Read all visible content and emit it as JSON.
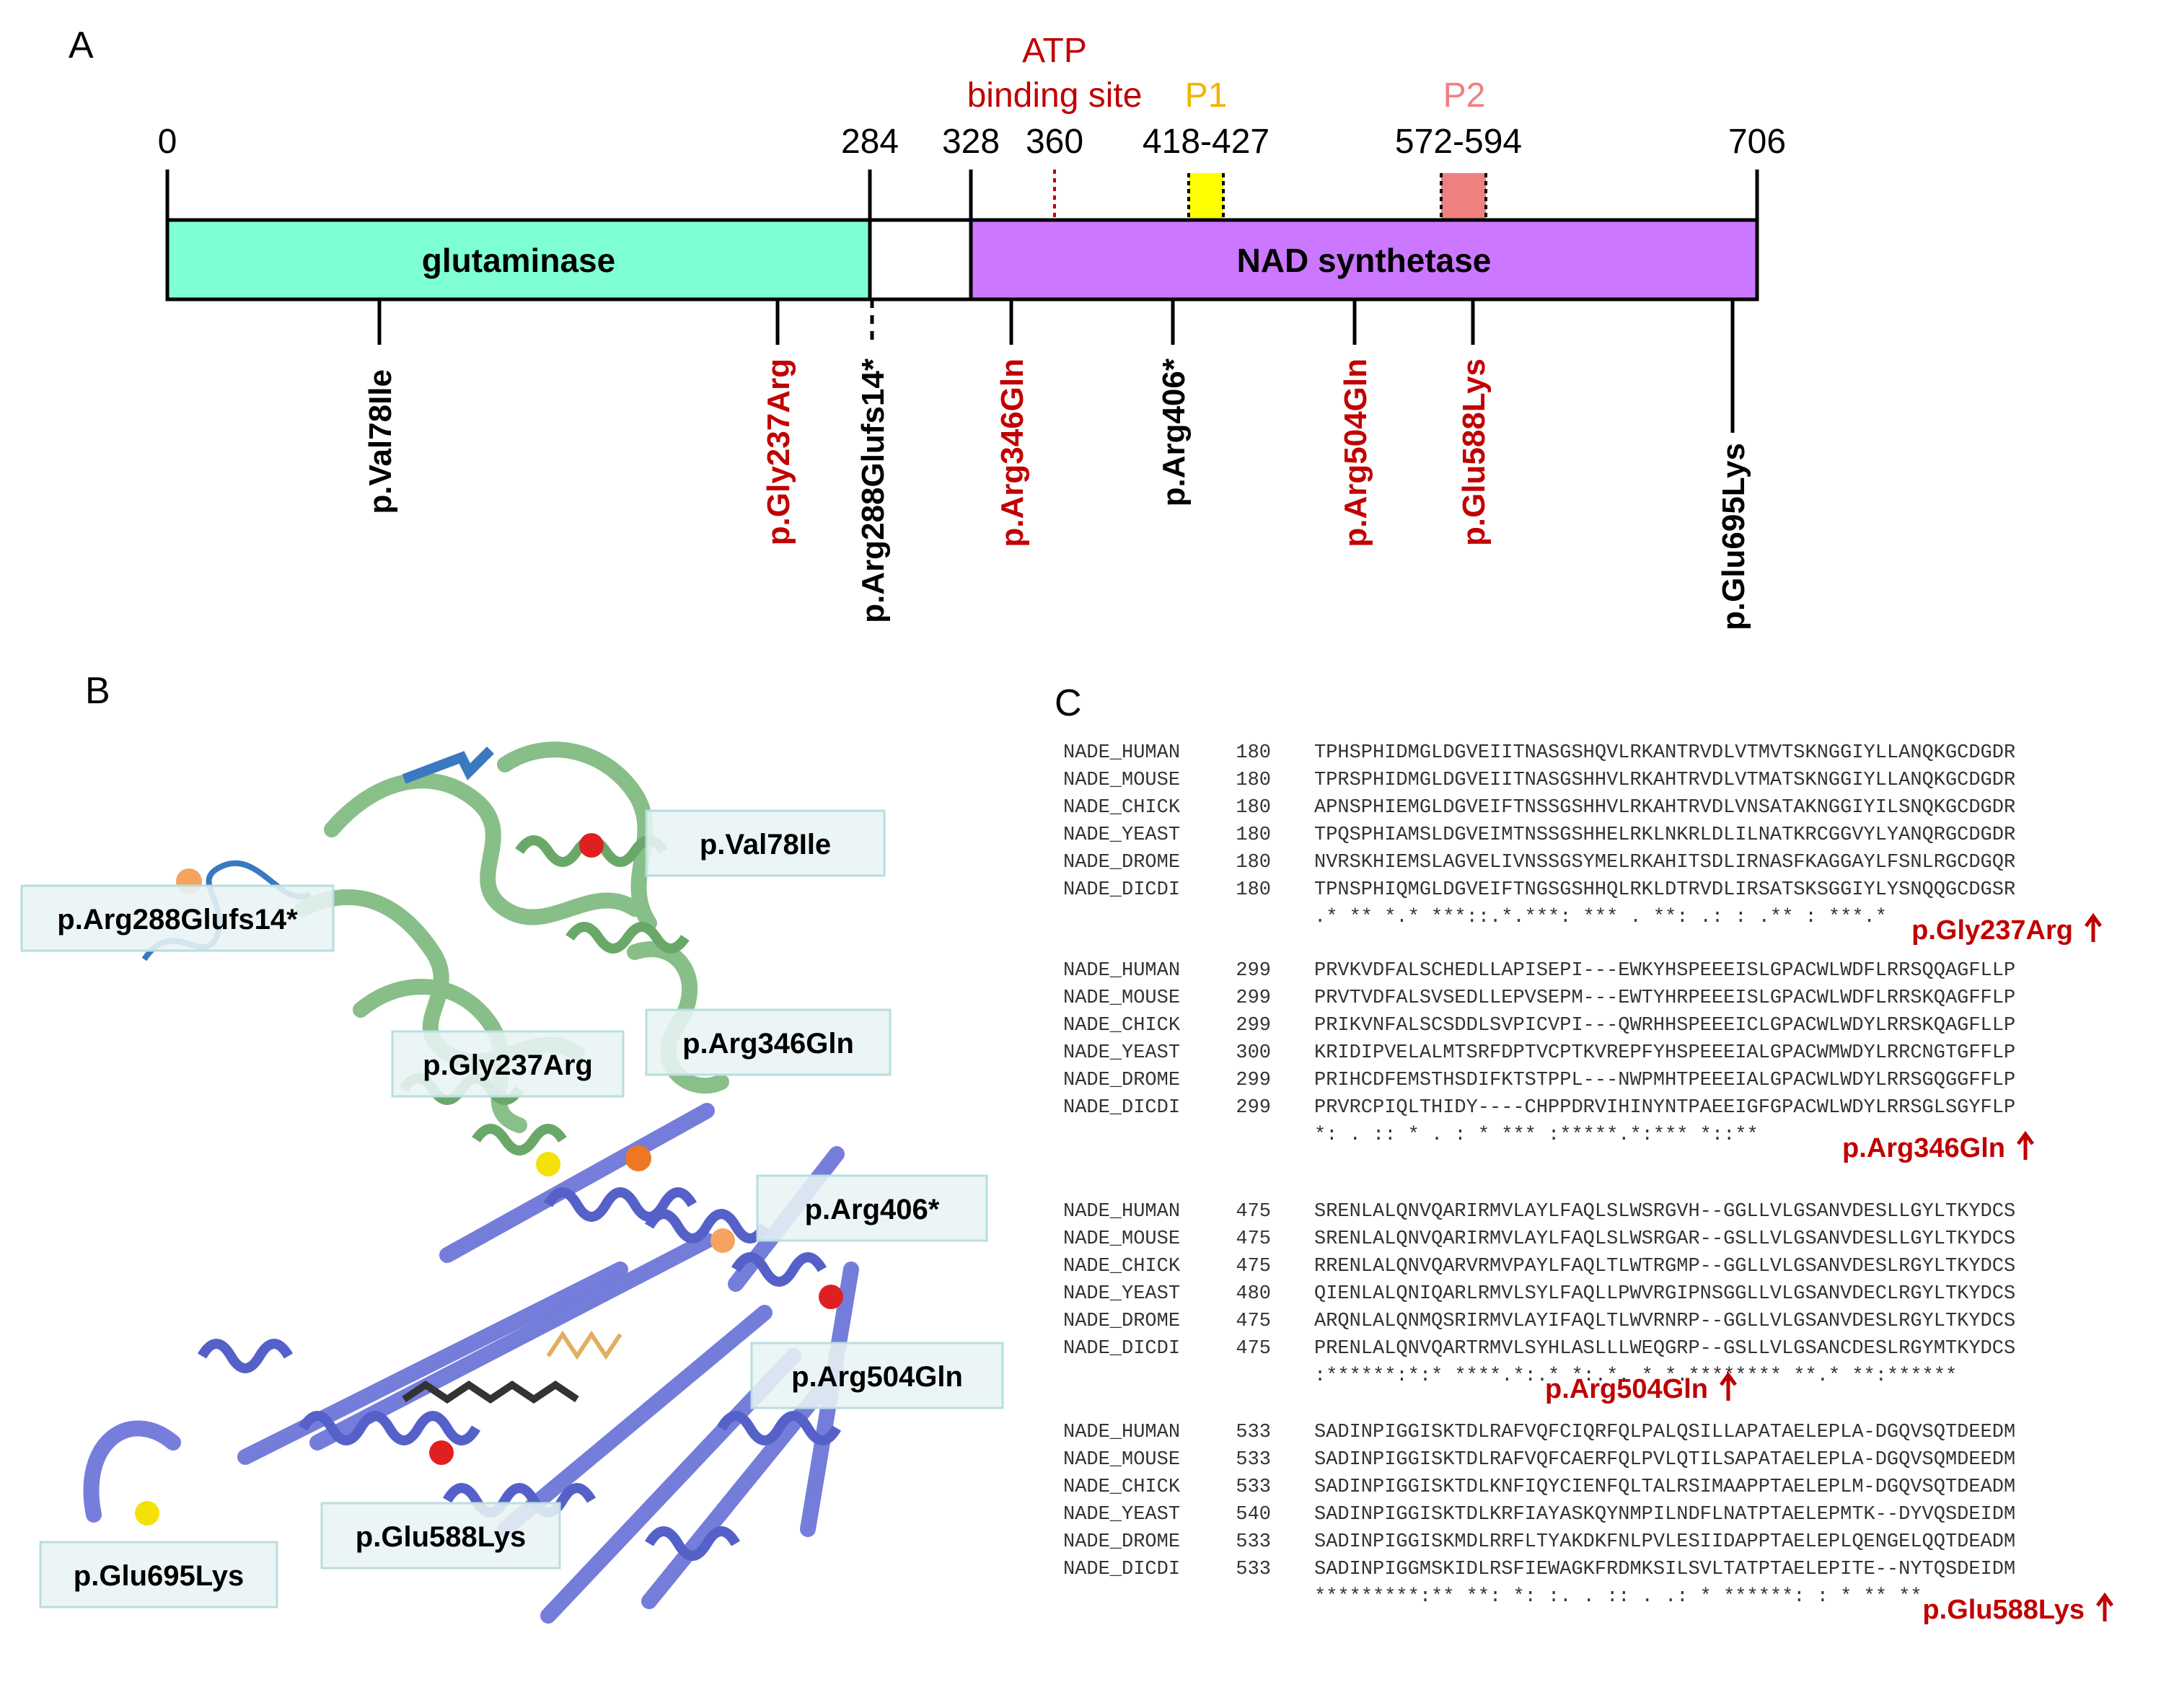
{
  "panels": {
    "a": "A",
    "b": "B",
    "c": "C"
  },
  "domain_map": {
    "scale": {
      "start": "0",
      "glut_end": "284",
      "nad_start": "328",
      "end": "706"
    },
    "atp": {
      "line1": "ATP",
      "line2": "binding site",
      "pos": "360"
    },
    "p1": {
      "label": "P1",
      "range": "418-427"
    },
    "p2": {
      "label": "P2",
      "range": "572-594"
    },
    "domains": {
      "glutaminase": "glutaminase",
      "nad": "NAD synthetase"
    },
    "colors": {
      "glutaminase": "#7fffd4",
      "nad": "#cc77ff",
      "p1": "#ffff00",
      "p2": "#f08080",
      "red": "#c00000"
    },
    "variants": [
      {
        "name": "p.Val78Ile",
        "color": "black"
      },
      {
        "name": "p.Gly237Arg",
        "color": "red"
      },
      {
        "name": "p.Arg288Glufs14*",
        "color": "black"
      },
      {
        "name": "p.Arg346Gln",
        "color": "red"
      },
      {
        "name": "p.Arg406*",
        "color": "black"
      },
      {
        "name": "p.Arg504Gln",
        "color": "red"
      },
      {
        "name": "p.Glu588Lys",
        "color": "red"
      },
      {
        "name": "p.Glu695Lys",
        "color": "black"
      }
    ]
  },
  "structure_labels": {
    "val78": "p.Val78Ile",
    "arg288": "p.Arg288Glufs14*",
    "gly237": "p.Gly237Arg",
    "arg346": "p.Arg346Gln",
    "arg406": "p.Arg406*",
    "arg504": "p.Arg504Gln",
    "glu588": "p.Glu588Lys",
    "glu695": "p.Glu695Lys"
  },
  "alignment": [
    {
      "rows": [
        {
          "name": "NADE_HUMAN",
          "pos": "180",
          "seq": "TPHSPHIDMGLDGVEIITNASGSHQVLRKANTRVDLVTMVTSKNGGIYLLANQKGCDGDR"
        },
        {
          "name": "NADE_MOUSE",
          "pos": "180",
          "seq": "TPRSPHIDMGLDGVEIITNASGSHHVLRKAHTRVDLVTMATSKNGGIYLLANQKGCDGDR"
        },
        {
          "name": "NADE_CHICK",
          "pos": "180",
          "seq": "APNSPHIEMGLDGVEIFTNSSGSHHVLRKAHTRVDLVNSATAKNGGIYILSNQKGCDGDR"
        },
        {
          "name": "NADE_YEAST",
          "pos": "180",
          "seq": "TPQSPHIAMSLDGVEIMTNSSGSHHELRKLNKRLDLILNATKRCGGVYLYANQRGCDGDR"
        },
        {
          "name": "NADE_DROME",
          "pos": "180",
          "seq": "NVRSKHIEMSLAGVELIVNSSGSYMELRKAHITSDLIRNASFKAGGAYLFSNLRGCDGQR"
        },
        {
          "name": "NADE_DICDI",
          "pos": "180",
          "seq": "TPNSPHIQMGLDGVEIFTNGSGSHHQLRKLDTRVDLIRSATSKSGGIYLYSNQQGCDGSR"
        }
      ],
      "consensus": " .* ** *.* ***::.*.***:   ***  .    **:  .: : .**  :  ***.*",
      "mutation": "p.Gly237Arg"
    },
    {
      "rows": [
        {
          "name": "NADE_HUMAN",
          "pos": "299",
          "seq": "PRVKVDFALSCHEDLLAPISEPI---EWKYHSPEEEISLGPACWLWDFLRRSQQAGFLLP"
        },
        {
          "name": "NADE_MOUSE",
          "pos": "299",
          "seq": "PRVTVDFALSVSEDLLEPVSEPM---EWTYHRPEEEISLGPACWLWDFLRRSKQAGFFLP"
        },
        {
          "name": "NADE_CHICK",
          "pos": "299",
          "seq": "PRIKVNFALSCSDDLSVPICVPI---QWRHHSPEEEICLGPACWLWDYLRRSKQAGFLLP"
        },
        {
          "name": "NADE_YEAST",
          "pos": "300",
          "seq": "KRIDIPVELALMTSRFDPTVCPTKVREPFYHSPEEEIALGPACWMWDYLRRCNGTGFFLP"
        },
        {
          "name": "NADE_DROME",
          "pos": "299",
          "seq": "PRIHCDFEMSTHSDIFKTSTPPL---NWPMHTPEEEIALGPACWLWDYLRRSGQGGFFLP"
        },
        {
          "name": "NADE_DICDI",
          "pos": "299",
          "seq": "PRVRCPIQLTHIDY----CHPPDRVIHINYNTPAEEIGFGPACWLWDYLRRSGLSGYFLP"
        }
      ],
      "consensus": " *:   . ::          *    .     : * *** :*****.*:***    *::**",
      "mutation": "p.Arg346Gln"
    },
    {
      "rows": [
        {
          "name": "NADE_HUMAN",
          "pos": "475",
          "seq": "SRENLALQNVQARIRMVLAYLFAQLSLWSRGVH--GGLLVLGSANVDESLLGYLTKYDCS"
        },
        {
          "name": "NADE_MOUSE",
          "pos": "475",
          "seq": "SRENLALQNVQARIRMVLAYLFAQLSLWSRGAR--GSLLVLGSANVDESLLGYLTKYDCS"
        },
        {
          "name": "NADE_CHICK",
          "pos": "475",
          "seq": "RRENLALQNVQARVRMVPAYLFAQLTLWTRGMP--GGLLVLGSANVDESLRGYLTKYDCS"
        },
        {
          "name": "NADE_YEAST",
          "pos": "480",
          "seq": "QIENLALQNIQARLRMVLSYLFAQLLPWVRGIPNSGGLLVLGSANVDECLRGYLTKYDCS"
        },
        {
          "name": "NADE_DROME",
          "pos": "475",
          "seq": "ARQNLALQNMQSRIRMVLAYIFAQLTLWVRNRP--GGLLVLGSANVDESLRGYLTKYDCS"
        },
        {
          "name": "NADE_DICDI",
          "pos": "475",
          "seq": "PRENLALQNVQARTRMVLSYHLASLLLWEQGRP--GSLLVLGSANCDESLRGYMTKYDCS"
        }
      ],
      "consensus": "  :******:*:* ****.*:.* *:.*. *    *.******** **.* **:******",
      "mutation": "p.Arg504Gln"
    },
    {
      "rows": [
        {
          "name": "NADE_HUMAN",
          "pos": "533",
          "seq": "SADINPIGGISKTDLRAFVQFCIQRFQLPALQSILLAPATAELEPLA-DGQVSQTDEEDM"
        },
        {
          "name": "NADE_MOUSE",
          "pos": "533",
          "seq": "SADINPIGGISKTDLRAFVQFCAERFQLPVLQTILSAPATAELEPLA-DGQVSQMDEEDM"
        },
        {
          "name": "NADE_CHICK",
          "pos": "533",
          "seq": "SADINPIGGISKTDLKNFIQYCIENFQLTALRSIMAAPPTAELEPLM-DGQVSQTDEADM"
        },
        {
          "name": "NADE_YEAST",
          "pos": "540",
          "seq": "SADINPIGGISKTDLKRFIAYASKQYNMPILNDFLNATPTAELEPMTK--DYVQSDEIDM"
        },
        {
          "name": "NADE_DROME",
          "pos": "533",
          "seq": "SADINPIGGISKMDLRRFLTYAKDKFNLPVLESIIDAPPTAELEPLQENGELQQTDEADM"
        },
        {
          "name": "NADE_DICDI",
          "pos": "533",
          "seq": "SADINPIGGMSKIDLRSFIEWAGKFRDMKSILSVLTATPTAELEPITE--NYTQSDEIDM"
        }
      ],
      "consensus": "*********:** **: *: :. .  :: .  .: *  ******:      :  * ** **",
      "mutation": "p.Glu588Lys"
    }
  ]
}
